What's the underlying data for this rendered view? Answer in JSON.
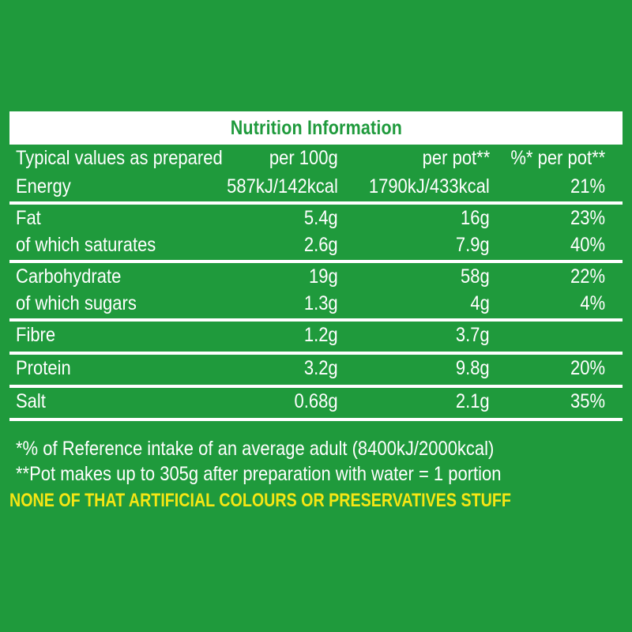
{
  "title": "Nutrition Information",
  "header": {
    "label": "Typical values as prepared",
    "per100": "per 100g",
    "perpot": "per pot**",
    "pct": "%* per pot**"
  },
  "energy": {
    "label": "Energy",
    "per100": "587kJ/142kcal",
    "perpot": "1790kJ/433kcal",
    "pct": "21%"
  },
  "fat": {
    "label": "Fat",
    "per100": "5.4g",
    "perpot": "16g",
    "pct": "23%"
  },
  "saturates": {
    "label": "of which saturates",
    "per100": "2.6g",
    "perpot": "7.9g",
    "pct": "40%"
  },
  "carbohydrate": {
    "label": "Carbohydrate",
    "per100": "19g",
    "perpot": "58g",
    "pct": "22%"
  },
  "sugars": {
    "label": "of which sugars",
    "per100": "1.3g",
    "perpot": "4g",
    "pct": "4%"
  },
  "fibre": {
    "label": "Fibre",
    "per100": "1.2g",
    "perpot": "3.7g",
    "pct": ""
  },
  "protein": {
    "label": "Protein",
    "per100": "3.2g",
    "perpot": "9.8g",
    "pct": "20%"
  },
  "salt": {
    "label": "Salt",
    "per100": "0.68g",
    "perpot": "2.1g",
    "pct": "35%"
  },
  "footnotes": {
    "reference": "*% of Reference intake of an average adult (8400kJ/2000kcal)",
    "portion": "**Pot makes up to 305g after preparation with water = 1 portion"
  },
  "slogan": "NONE OF THAT ARTIFICIAL COLOURS OR PRESERVATIVES STUFF",
  "colors": {
    "background": "#1f9a3c",
    "text": "#ffffff",
    "slogan": "#f5e614"
  }
}
